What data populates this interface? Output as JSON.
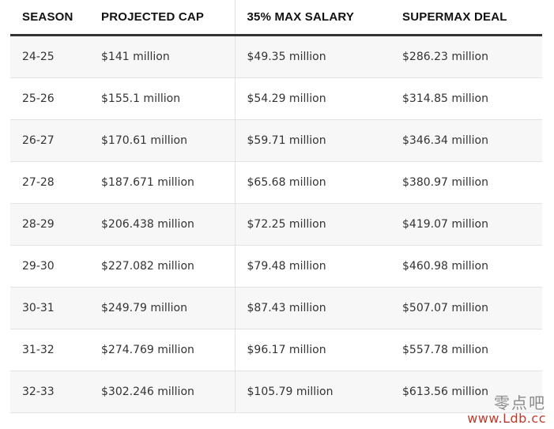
{
  "table": {
    "headers": {
      "season": "SEASON",
      "cap": "PROJECTED CAP",
      "max": "35% MAX SALARY",
      "supermax": "SUPERMAX DEAL"
    },
    "rows": [
      {
        "season": "24-25",
        "cap": "$141 million",
        "max": "$49.35 million",
        "supermax": "$286.23 million"
      },
      {
        "season": "25-26",
        "cap": "$155.1 million",
        "max": "$54.29 million",
        "supermax": "$314.85 million"
      },
      {
        "season": "26-27",
        "cap": "$170.61 million",
        "max": "$59.71 million",
        "supermax": "$346.34 million"
      },
      {
        "season": "27-28",
        "cap": "$187.671 million",
        "max": "$65.68 million",
        "supermax": "$380.97 million"
      },
      {
        "season": "28-29",
        "cap": "$206.438 million",
        "max": "$72.25 million",
        "supermax": "$419.07 million"
      },
      {
        "season": "29-30",
        "cap": "$227.082 million",
        "max": "$79.48 million",
        "supermax": "$460.98 million"
      },
      {
        "season": "30-31",
        "cap": "$249.79 million",
        "max": "$87.43 million",
        "supermax": "$507.07 million"
      },
      {
        "season": "31-32",
        "cap": "$274.769 million",
        "max": "$96.17 million",
        "supermax": "$557.78 million"
      },
      {
        "season": "32-33",
        "cap": "$302.246 million",
        "max": "$105.79 million",
        "supermax": "$613.56 million"
      }
    ]
  },
  "watermark": {
    "chinese": "零点吧",
    "url": "www.Ldb.cc"
  }
}
